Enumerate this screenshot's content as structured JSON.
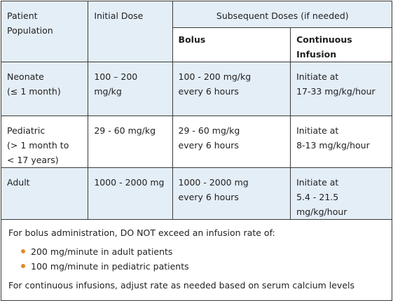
{
  "headers": {
    "patient_population": "Patient Population",
    "initial_dose": "Initial Dose",
    "subsequent_doses": "Subsequent Doses (if needed)",
    "bolus": "Bolus",
    "continuous_infusion": "Continuous Infusion"
  },
  "rows": [
    {
      "population": [
        "Neonate",
        "(≤ 1 month)"
      ],
      "initial_dose": "100 – 200 mg/kg",
      "bolus": [
        "100 - 200 mg/kg",
        "every 6 hours"
      ],
      "infusion": [
        "Initiate at",
        "17-33 mg/kg/hour"
      ]
    },
    {
      "population": [
        "Pediatric",
        "(> 1 month to",
        "< 17 years)"
      ],
      "initial_dose": "29 - 60 mg/kg",
      "bolus": [
        "29 - 60 mg/kg",
        "every 6 hours"
      ],
      "infusion": [
        "Initiate at",
        "8-13 mg/kg/hour"
      ]
    },
    {
      "population": [
        "Adult"
      ],
      "initial_dose": "1000 - 2000 mg",
      "bolus": [
        "1000 - 2000 mg",
        "every 6 hours"
      ],
      "infusion": [
        "Initiate at",
        "5.4 - 21.5 mg/kg/hour"
      ]
    }
  ],
  "footer": {
    "bolus_note": "For bolus administration, DO NOT exceed an infusion rate of:",
    "bullets": [
      "200 mg/minute in adult patients",
      "100 mg/minute in pediatric patients"
    ],
    "infusion_note": "For continuous infusions, adjust rate as needed based on serum calcium levels"
  },
  "colors": {
    "header_bg": "#e4eef7",
    "bullet": "#e5892a",
    "border": "#3a3a3a"
  }
}
